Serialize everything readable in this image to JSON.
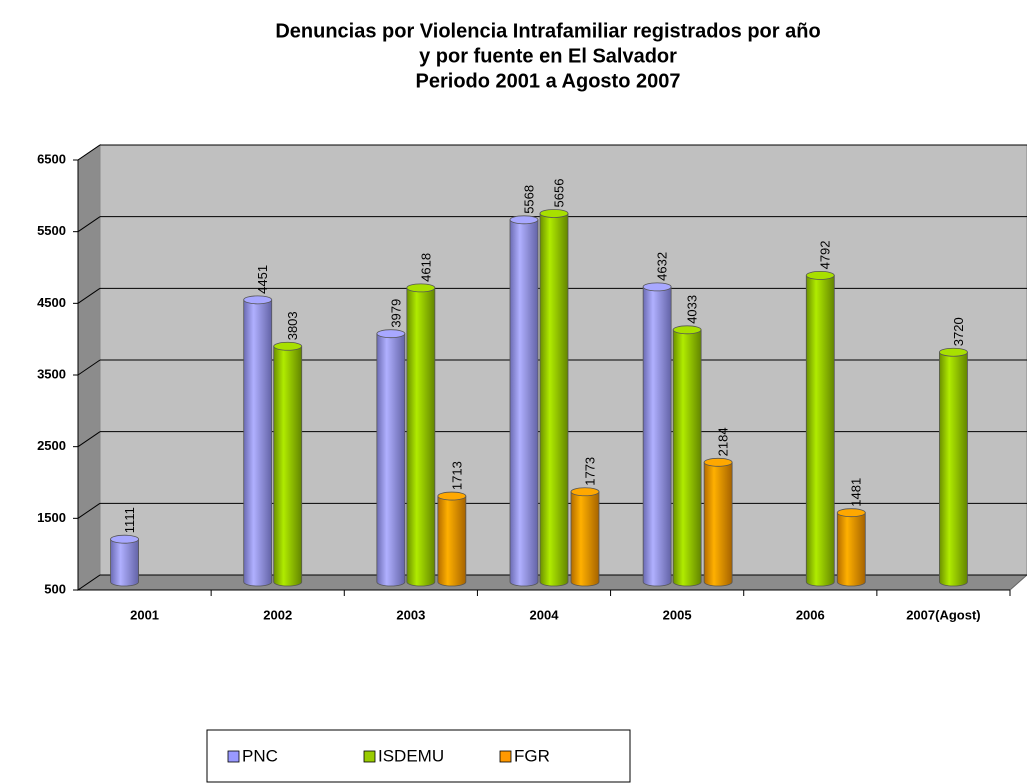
{
  "chart_data": {
    "type": "bar",
    "title": [
      "Denuncias por Violencia Intrafamiliar registrados por año",
      "y por fuente en El Salvador",
      "Periodo 2001 a Agosto 2007"
    ],
    "categories": [
      "2001",
      "2002",
      "2003",
      "2004",
      "2005",
      "2006",
      "2007(Agost)"
    ],
    "series": [
      {
        "name": "PNC",
        "color": "#9999ff",
        "values": [
          1111,
          4451,
          3979,
          5568,
          4632,
          null,
          null
        ]
      },
      {
        "name": "ISDEMU",
        "color": "#99cc00",
        "values": [
          null,
          3803,
          4618,
          5656,
          4033,
          4792,
          3720
        ]
      },
      {
        "name": "FGR",
        "color": "#ff9900",
        "values": [
          null,
          null,
          1713,
          1773,
          2184,
          1481,
          null
        ]
      }
    ],
    "ylim": [
      500,
      6500
    ],
    "yticks": [
      500,
      1500,
      2500,
      3500,
      4500,
      5500,
      6500
    ],
    "grid": true
  }
}
